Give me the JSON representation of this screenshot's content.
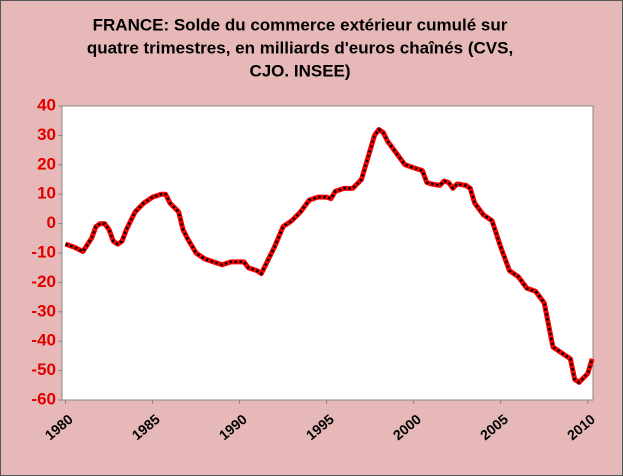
{
  "chart_data": {
    "type": "line",
    "title": [
      "FRANCE: Solde du commerce extérieur  cumulé sur",
      "quatre trimestres, en milliards d'euros chaînés  (CVS,",
      "CJO. INSEE)"
    ],
    "x": [
      1980,
      1980.5,
      1981,
      1981.5,
      1981.75,
      1982,
      1982.25,
      1982.5,
      1982.75,
      1983,
      1983.25,
      1983.5,
      1984,
      1984.5,
      1985,
      1985.5,
      1985.75,
      1986,
      1986.5,
      1986.75,
      1987,
      1987.5,
      1988,
      1988.5,
      1989,
      1989.5,
      1990,
      1990.25,
      1990.5,
      1991,
      1991.25,
      1991.5,
      1992,
      1992.5,
      1993,
      1993.5,
      1994,
      1994.5,
      1995,
      1995.25,
      1995.5,
      1996,
      1996.5,
      1997,
      1997.5,
      1997.75,
      1998,
      1998.25,
      1998.5,
      1999,
      1999.5,
      2000,
      2000.5,
      2000.75,
      2001,
      2001.5,
      2001.75,
      2002,
      2002.25,
      2002.5,
      2003,
      2003.25,
      2003.5,
      2004,
      2004.5,
      2005,
      2005.5,
      2006,
      2006.5,
      2007,
      2007.5,
      2008,
      2008.5,
      2009,
      2009.25,
      2009.5,
      2010,
      2010.25
    ],
    "series": [
      {
        "color": "#ff0000",
        "values": [
          -7,
          -8,
          -9.5,
          -5,
          -1,
          0,
          0,
          -2,
          -6,
          -7,
          -6,
          -2,
          4,
          7,
          9,
          10,
          10,
          7,
          4,
          -2,
          -5,
          -10,
          -12,
          -13,
          -14,
          -13,
          -13,
          -13,
          -15,
          -16,
          -17,
          -14,
          -8,
          -1,
          1,
          4,
          8,
          9,
          9,
          8.5,
          11,
          12,
          12,
          15,
          25,
          30,
          32,
          31,
          28,
          24,
          20,
          19,
          18,
          14,
          13.5,
          13,
          14.5,
          14,
          12,
          13.5,
          13,
          12,
          7,
          3,
          1,
          -8,
          -16,
          -18,
          -22,
          -23,
          -27,
          -42,
          -44,
          -46,
          -53,
          -54,
          -51,
          -46
        ]
      }
    ],
    "xlim": [
      1979.8,
      2010.3
    ],
    "xticks": [
      1980,
      1985,
      1990,
      1995,
      2000,
      2005,
      2010
    ],
    "ylim": [
      -60,
      40
    ],
    "yticks": [
      40,
      30,
      20,
      10,
      0,
      -10,
      -20,
      -30,
      -40,
      -50,
      -60
    ]
  }
}
